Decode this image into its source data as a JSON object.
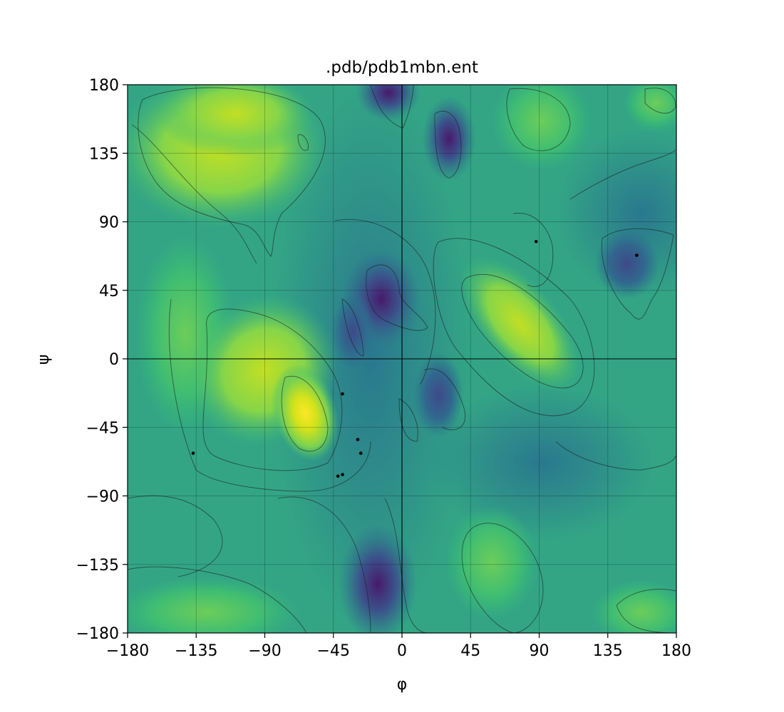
{
  "chart_data": {
    "type": "heatmap",
    "title": ".pdb/pdb1mbn.ent",
    "xlabel": "φ",
    "ylabel": "ψ",
    "xlim": [
      -180,
      180
    ],
    "ylim": [
      -180,
      180
    ],
    "xticks": [
      -180,
      -135,
      -90,
      -45,
      0,
      45,
      90,
      135,
      180
    ],
    "yticks": [
      -180,
      -135,
      -90,
      -45,
      0,
      45,
      90,
      135,
      180
    ],
    "xtick_labels": [
      "−180",
      "−135",
      "−90",
      "−45",
      "0",
      "45",
      "90",
      "135",
      "180"
    ],
    "ytick_labels": [
      "−180",
      "−135",
      "−90",
      "−45",
      "0",
      "45",
      "90",
      "135",
      "180"
    ],
    "grid": true,
    "colormap": "viridis",
    "points": [
      {
        "phi": -137,
        "psi": -62
      },
      {
        "phi": -39,
        "psi": -23
      },
      {
        "phi": -29,
        "psi": -53
      },
      {
        "phi": -27,
        "psi": -62
      },
      {
        "phi": -42,
        "psi": -77
      },
      {
        "phi": -39,
        "psi": -76
      },
      {
        "phi": 88,
        "psi": 77
      },
      {
        "phi": 154,
        "psi": 68
      }
    ]
  }
}
